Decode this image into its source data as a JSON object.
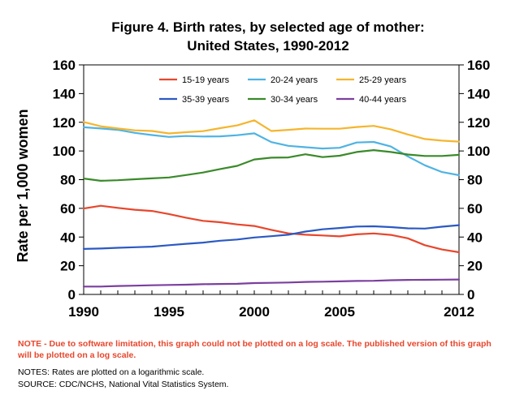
{
  "chart_data": {
    "type": "line",
    "title_line1": "Figure 4.  Birth rates, by selected age of mother:",
    "title_line2": "United States, 1990-2012",
    "ylabel": "Rate per 1,000 women",
    "xlabel": "",
    "xlim": [
      1990,
      2012
    ],
    "ylim": [
      0,
      160
    ],
    "x_ticks": [
      1990,
      1995,
      2000,
      2005,
      2012
    ],
    "x_tick_labels": [
      "1990",
      "1995",
      "2000",
      "2005",
      "2012"
    ],
    "y_ticks": [
      0,
      20,
      40,
      60,
      80,
      100,
      120,
      140,
      160
    ],
    "y_tick_labels": [
      "0",
      "20",
      "40",
      "60",
      "80",
      "100",
      "120",
      "140",
      "160"
    ],
    "grid": false,
    "legend": "top-center",
    "x": [
      1990,
      1991,
      1992,
      1993,
      1994,
      1995,
      1996,
      1997,
      1998,
      1999,
      2000,
      2001,
      2002,
      2003,
      2004,
      2005,
      2006,
      2007,
      2008,
      2009,
      2010,
      2011,
      2012
    ],
    "series": [
      {
        "name": "15-19 years",
        "color": "#e8462c",
        "values": [
          59.9,
          61.8,
          60.3,
          59.0,
          58.2,
          56.0,
          53.5,
          51.3,
          50.3,
          48.8,
          47.7,
          45.0,
          42.6,
          41.6,
          41.1,
          40.5,
          41.9,
          42.5,
          41.5,
          39.1,
          34.3,
          31.3,
          29.4
        ]
      },
      {
        "name": "20-24 years",
        "color": "#4fb3e3",
        "values": [
          116.5,
          115.7,
          114.7,
          112.6,
          111.1,
          109.8,
          110.4,
          110.1,
          110.2,
          111.0,
          112.3,
          106.2,
          103.6,
          102.6,
          101.7,
          102.2,
          105.9,
          106.3,
          103.1,
          96.2,
          90.0,
          85.3,
          83.1
        ]
      },
      {
        "name": "25-29 years",
        "color": "#f5b52e",
        "values": [
          120.2,
          117.2,
          115.7,
          114.4,
          113.9,
          112.2,
          113.1,
          113.8,
          115.9,
          117.8,
          121.4,
          113.9,
          114.7,
          115.6,
          115.5,
          115.5,
          116.7,
          117.5,
          115.1,
          111.5,
          108.3,
          107.2,
          106.5
        ]
      },
      {
        "name": "35-39 years",
        "color": "#2b59c3",
        "values": [
          31.7,
          32.0,
          32.5,
          32.9,
          33.3,
          34.3,
          35.3,
          36.1,
          37.4,
          38.3,
          39.7,
          40.6,
          41.6,
          43.8,
          45.4,
          46.3,
          47.3,
          47.5,
          46.9,
          46.1,
          45.9,
          47.2,
          48.3
        ]
      },
      {
        "name": "30-34 years",
        "color": "#3a8a2a",
        "values": [
          80.8,
          79.2,
          79.6,
          80.3,
          80.9,
          81.5,
          83.2,
          85.0,
          87.4,
          89.6,
          94.1,
          95.3,
          95.5,
          97.7,
          95.7,
          96.7,
          99.3,
          100.6,
          99.3,
          97.5,
          96.5,
          96.5,
          97.3
        ]
      },
      {
        "name": "40-44 years",
        "color": "#7b3f9e",
        "values": [
          5.5,
          5.5,
          5.9,
          6.1,
          6.4,
          6.6,
          6.8,
          7.1,
          7.3,
          7.4,
          7.9,
          8.1,
          8.3,
          8.7,
          8.9,
          9.1,
          9.4,
          9.5,
          9.9,
          10.1,
          10.2,
          10.3,
          10.4
        ]
      }
    ]
  },
  "notes": {
    "software_note": "NOTE - Due to software limitation, this graph could not be plotted on a log scale.  The published version of this graph will be plotted on a log scale.",
    "scale_note": "NOTES:  Rates are plotted on a logarithmic scale.",
    "source": "SOURCE: CDC/NCHS, National Vital Statistics System."
  }
}
